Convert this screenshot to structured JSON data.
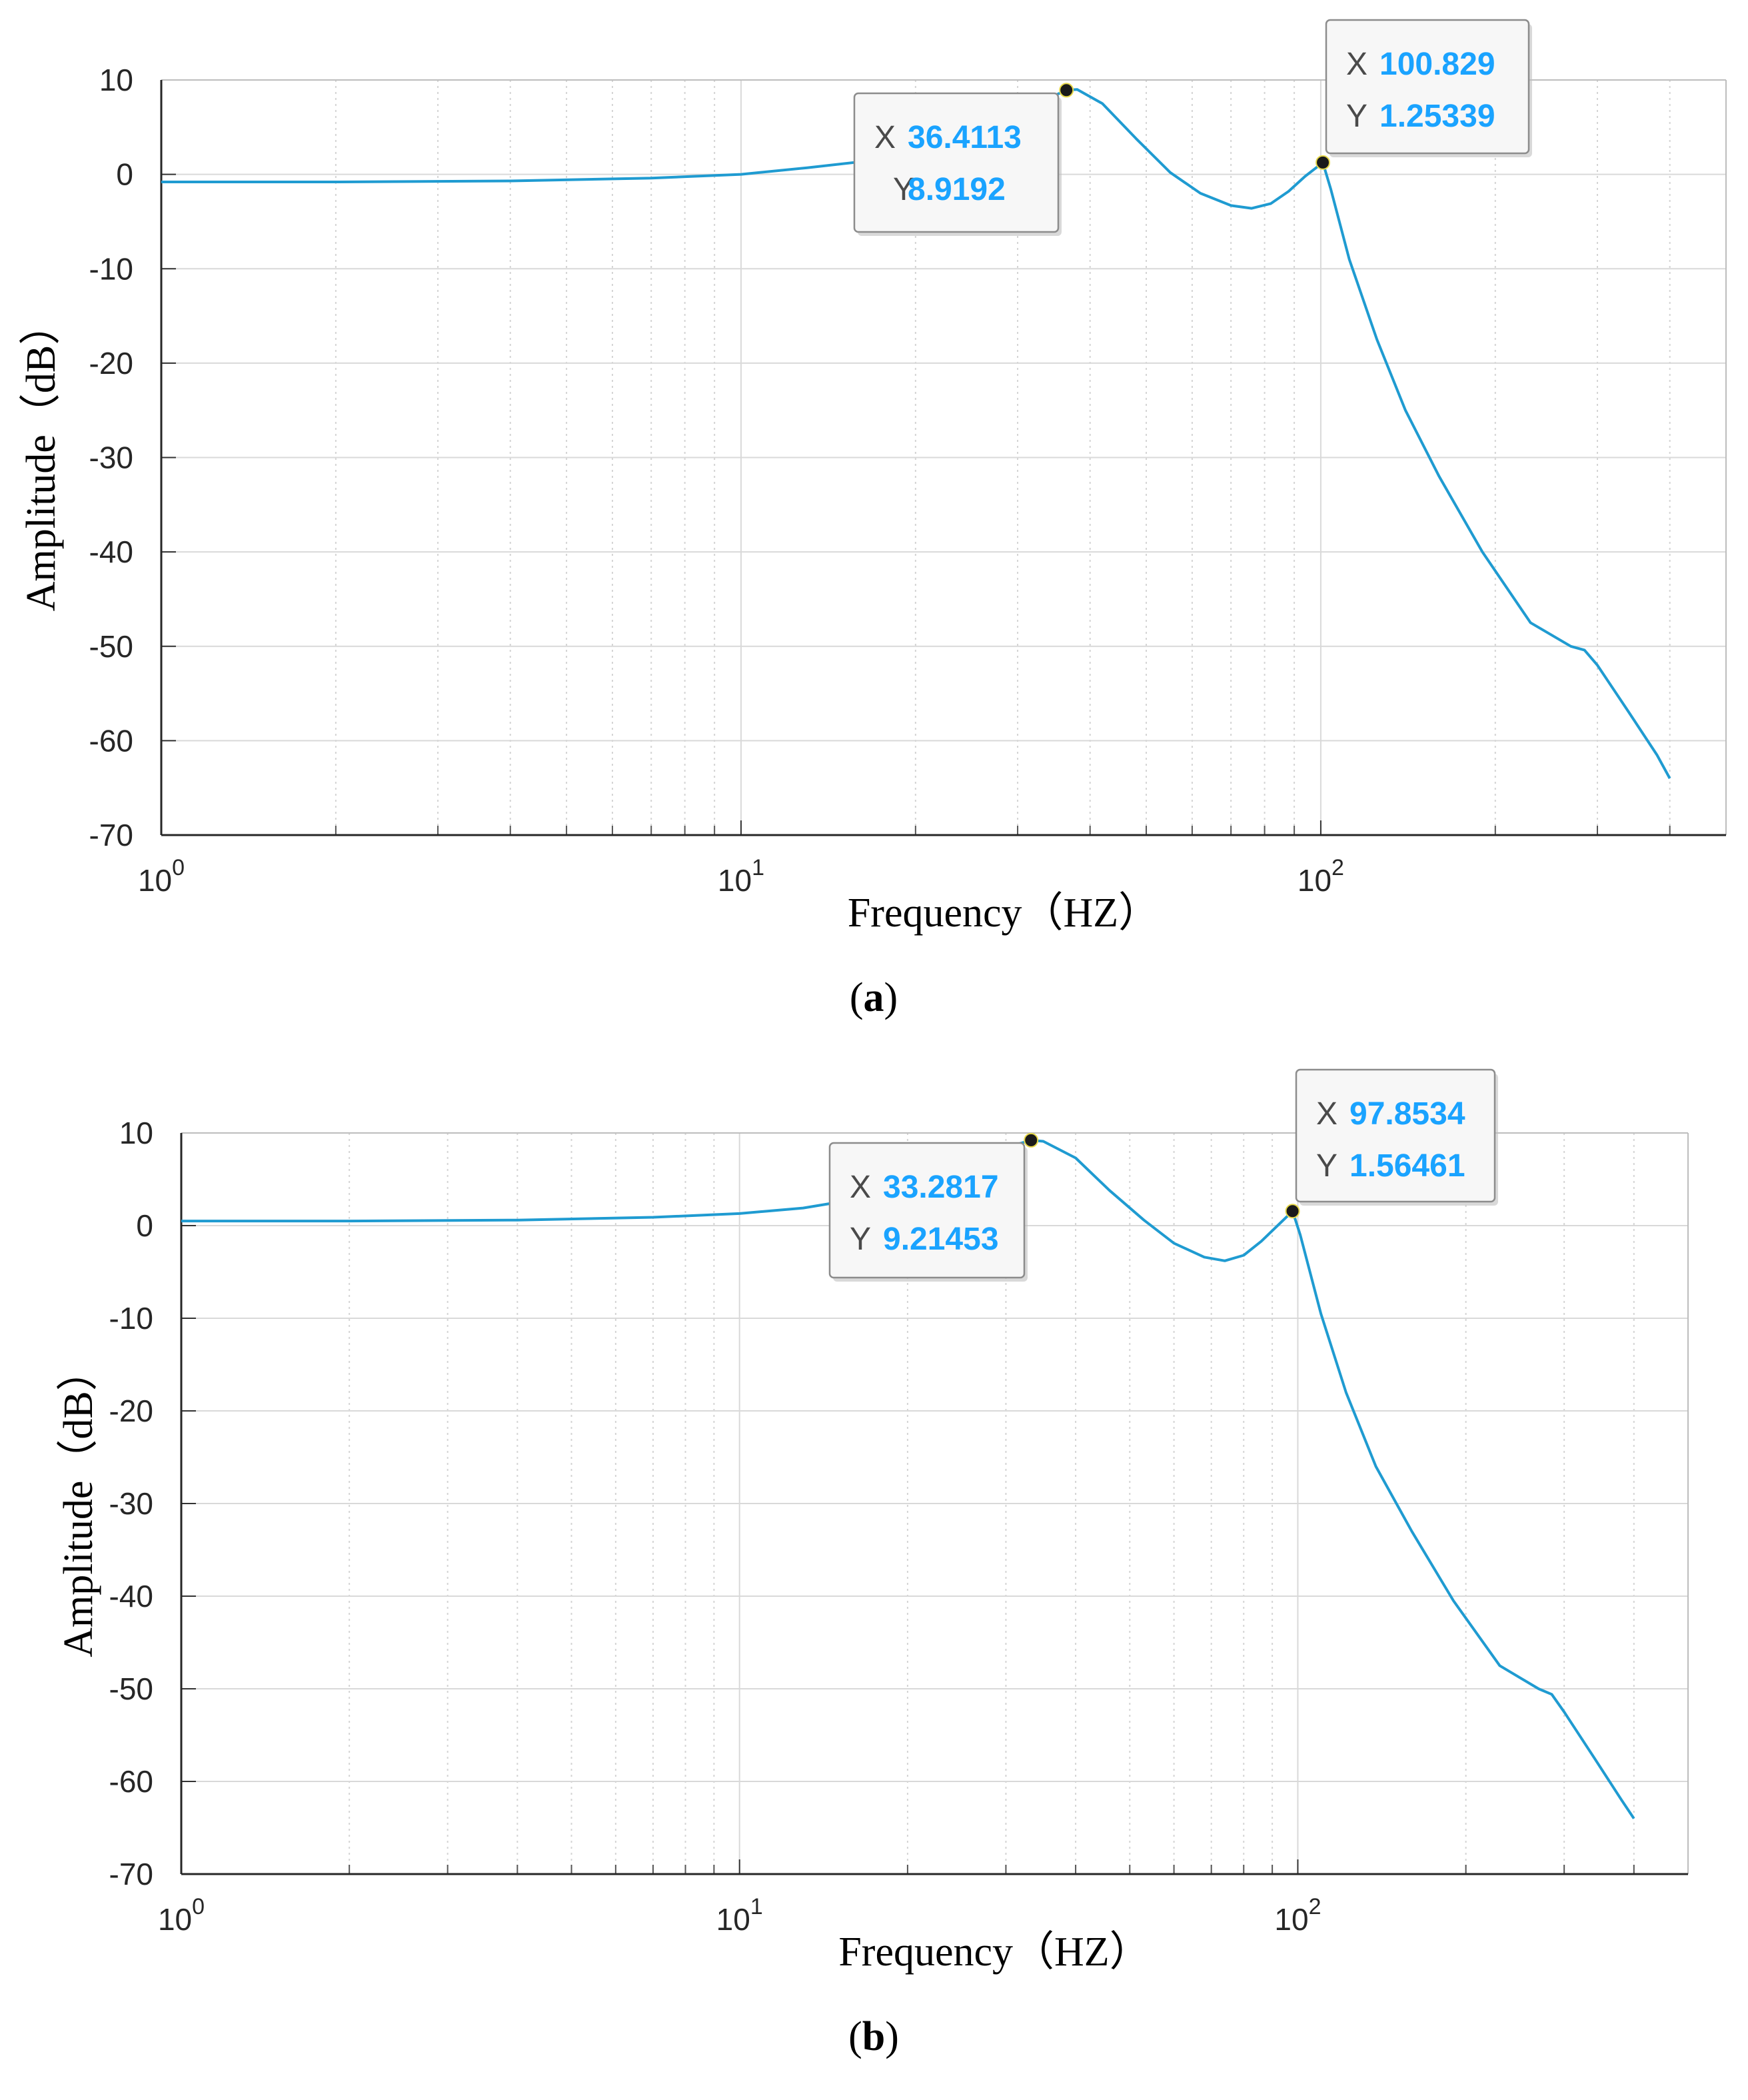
{
  "chart_data": [
    {
      "type": "line",
      "panel_label": "(a)",
      "panel_letter": "a",
      "xlabel": "Frequency（HZ）",
      "ylabel": "Amplitude（dB）",
      "xscale": "log",
      "xlim": [
        1,
        500
      ],
      "ylim": [
        -70,
        10
      ],
      "grid": true,
      "yticks": [
        10,
        0,
        -10,
        -20,
        -30,
        -40,
        -50,
        -60,
        -70
      ],
      "ytick_labels": [
        "10",
        "0",
        "-10",
        "-20",
        "-30",
        "-40",
        "-50",
        "-60",
        "-70"
      ],
      "xticks": [
        {
          "value": 1,
          "base": "10",
          "exp": "0"
        },
        {
          "value": 10,
          "base": "10",
          "exp": "1"
        },
        {
          "value": 100,
          "base": "10",
          "exp": "2"
        }
      ],
      "series": [
        {
          "name": "amplitude",
          "color": "#1f9bd1",
          "x": [
            1,
            2,
            4,
            7,
            10,
            13,
            17,
            22,
            27,
            31,
            34,
            36.4113,
            38,
            42,
            48,
            55,
            62,
            70,
            76,
            82,
            88,
            94,
            100.829,
            104,
            112,
            125,
            140,
            160,
            190,
            230,
            270,
            285,
            300,
            340,
            380,
            400
          ],
          "y": [
            -0.8,
            -0.8,
            -0.7,
            -0.4,
            0.0,
            0.7,
            1.5,
            3.0,
            5.0,
            6.8,
            8.1,
            8.9192,
            9.0,
            7.5,
            3.8,
            0.2,
            -2.0,
            -3.3,
            -3.6,
            -3.1,
            -1.8,
            -0.2,
            1.25339,
            -1.5,
            -9.0,
            -17.5,
            -25.0,
            -32.0,
            -40.0,
            -47.5,
            -50.0,
            -50.4,
            -52.0,
            -57.0,
            -61.5,
            -64.0
          ]
        }
      ],
      "datatips": [
        {
          "x": 36.4113,
          "y": 8.9192,
          "x_key": "X",
          "y_key": "Y",
          "x_text": "36.4113",
          "y_text": "8.9192"
        },
        {
          "x": 100.829,
          "y": 1.25339,
          "x_key": "X",
          "y_key": "Y",
          "x_text": "100.829",
          "y_text": "1.25339"
        }
      ]
    },
    {
      "type": "line",
      "panel_label": "(b)",
      "panel_letter": "b",
      "xlabel": "Frequency（HZ）",
      "ylabel": "Amplitude（dB）",
      "xscale": "log",
      "xlim": [
        1,
        500
      ],
      "ylim": [
        -70,
        10
      ],
      "grid": true,
      "yticks": [
        10,
        0,
        -10,
        -20,
        -30,
        -40,
        -50,
        -60,
        -70
      ],
      "ytick_labels": [
        "10",
        "0",
        "-10",
        "-20",
        "-30",
        "-40",
        "-50",
        "-60",
        "-70"
      ],
      "xticks": [
        {
          "value": 1,
          "base": "10",
          "exp": "0"
        },
        {
          "value": 10,
          "base": "10",
          "exp": "1"
        },
        {
          "value": 100,
          "base": "10",
          "exp": "2"
        }
      ],
      "series": [
        {
          "name": "amplitude",
          "color": "#1f9bd1",
          "x": [
            1,
            2,
            4,
            7,
            10,
            13,
            16,
            20,
            25,
            29,
            31.5,
            33.2817,
            35,
            40,
            46,
            53,
            60,
            68,
            74,
            80,
            86,
            92,
            97.8534,
            101,
            110,
            122,
            138,
            160,
            190,
            230,
            270,
            285,
            300,
            340,
            380,
            400
          ],
          "y": [
            0.5,
            0.5,
            0.6,
            0.9,
            1.3,
            1.9,
            2.8,
            4.3,
            6.3,
            7.9,
            8.8,
            9.21453,
            9.1,
            7.3,
            3.8,
            0.6,
            -1.9,
            -3.4,
            -3.8,
            -3.2,
            -1.7,
            0.0,
            1.56461,
            -1.0,
            -9.5,
            -18.0,
            -26.0,
            -33.0,
            -40.5,
            -47.5,
            -50.0,
            -50.6,
            -52.5,
            -57.5,
            -62.0,
            -64.0
          ]
        }
      ],
      "datatips": [
        {
          "x": 33.2817,
          "y": 9.21453,
          "x_key": "X",
          "y_key": "Y",
          "x_text": "33.2817",
          "y_text": "9.21453"
        },
        {
          "x": 97.8534,
          "y": 1.56461,
          "x_key": "X",
          "y_key": "Y",
          "x_text": "97.8534",
          "y_text": "1.56461"
        }
      ]
    }
  ]
}
